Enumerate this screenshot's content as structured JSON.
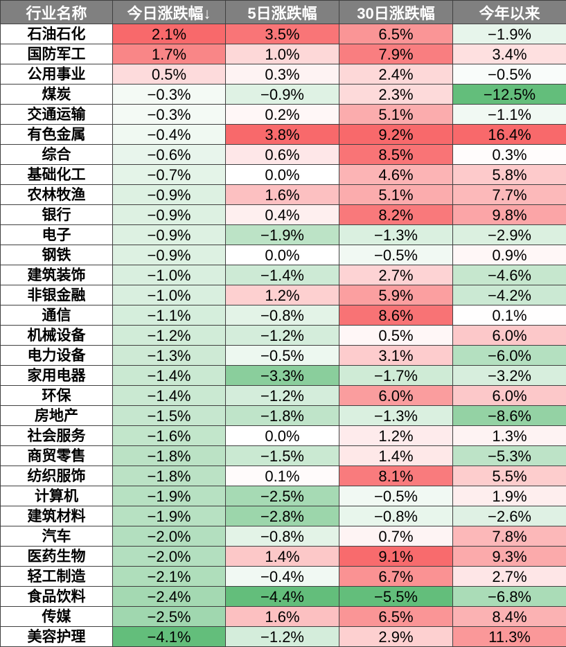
{
  "headers": [
    "行业名称",
    "今日涨跌幅↓",
    "5日涨跌幅",
    "30日涨跌幅",
    "今年以来"
  ],
  "rows": [
    [
      "石油石化",
      "2.1%",
      "3.5%",
      "6.5%",
      "−1.9%"
    ],
    [
      "国防军工",
      "1.7%",
      "1.0%",
      "7.9%",
      "3.4%"
    ],
    [
      "公用事业",
      "0.5%",
      "0.3%",
      "2.4%",
      "−0.5%"
    ],
    [
      "煤炭",
      "−0.3%",
      "−0.9%",
      "2.3%",
      "−12.5%"
    ],
    [
      "交通运输",
      "−0.3%",
      "0.2%",
      "5.1%",
      "−1.1%"
    ],
    [
      "有色金属",
      "−0.4%",
      "3.8%",
      "9.2%",
      "16.4%"
    ],
    [
      "综合",
      "−0.6%",
      "0.6%",
      "8.5%",
      "0.3%"
    ],
    [
      "基础化工",
      "−0.7%",
      "0.0%",
      "4.6%",
      "5.8%"
    ],
    [
      "农林牧渔",
      "−0.9%",
      "1.6%",
      "5.1%",
      "7.7%"
    ],
    [
      "银行",
      "−0.9%",
      "0.4%",
      "8.2%",
      "9.8%"
    ],
    [
      "电子",
      "−0.9%",
      "−1.9%",
      "−1.3%",
      "−2.9%"
    ],
    [
      "钢铁",
      "−0.9%",
      "0.0%",
      "−0.5%",
      "0.9%"
    ],
    [
      "建筑装饰",
      "−1.0%",
      "−1.4%",
      "2.7%",
      "−4.6%"
    ],
    [
      "非银金融",
      "−1.0%",
      "1.2%",
      "5.9%",
      "−4.2%"
    ],
    [
      "通信",
      "−1.1%",
      "−0.8%",
      "8.6%",
      "0.1%"
    ],
    [
      "机械设备",
      "−1.2%",
      "−1.2%",
      "0.5%",
      "6.0%"
    ],
    [
      "电力设备",
      "−1.3%",
      "−0.5%",
      "3.1%",
      "−6.0%"
    ],
    [
      "家用电器",
      "−1.4%",
      "−3.3%",
      "−1.7%",
      "−3.2%"
    ],
    [
      "环保",
      "−1.4%",
      "−1.2%",
      "6.0%",
      "6.0%"
    ],
    [
      "房地产",
      "−1.5%",
      "−1.8%",
      "−1.3%",
      "−8.6%"
    ],
    [
      "社会服务",
      "−1.6%",
      "0.0%",
      "1.2%",
      "1.3%"
    ],
    [
      "商贸零售",
      "−1.8%",
      "−1.5%",
      "1.4%",
      "−5.3%"
    ],
    [
      "纺织服饰",
      "−1.8%",
      "0.1%",
      "8.1%",
      "5.5%"
    ],
    [
      "计算机",
      "−1.9%",
      "−2.5%",
      "−0.5%",
      "1.9%"
    ],
    [
      "建筑材料",
      "−1.9%",
      "−2.8%",
      "−0.8%",
      "−2.6%"
    ],
    [
      "汽车",
      "−2.0%",
      "−0.8%",
      "0.7%",
      "7.8%"
    ],
    [
      "医药生物",
      "−2.0%",
      "1.4%",
      "9.1%",
      "9.3%"
    ],
    [
      "轻工制造",
      "−2.1%",
      "−0.4%",
      "6.7%",
      "2.7%"
    ],
    [
      "食品饮料",
      "−2.4%",
      "−4.4%",
      "−5.5%",
      "−6.8%"
    ],
    [
      "传媒",
      "−2.5%",
      "1.6%",
      "6.5%",
      "8.4%"
    ],
    [
      "美容护理",
      "−4.1%",
      "−1.2%",
      "2.9%",
      "11.3%"
    ]
  ],
  "colors": {
    "header_bg": "#808080",
    "header_text": "#ffffff",
    "positive_max": "#f8696b",
    "negative_max": "#63be7b",
    "neutral": "#ffffff",
    "grid": "#404040"
  }
}
